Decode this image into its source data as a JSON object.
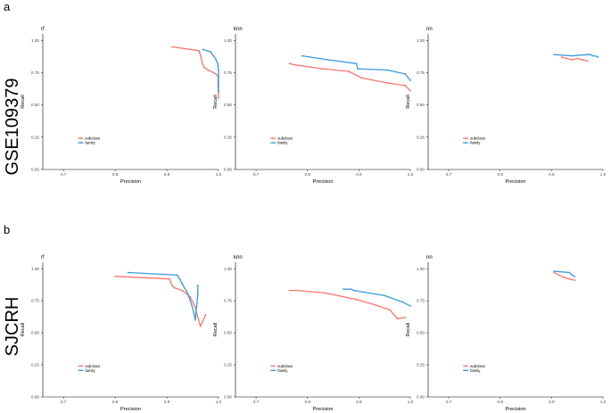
{
  "figure": {
    "rows": [
      {
        "letter": "a",
        "label": "GSE109379"
      },
      {
        "letter": "b",
        "label": "SJCRH"
      }
    ]
  },
  "chart_data": [
    {
      "type": "line",
      "title": "rf",
      "xlabel": "Precision",
      "ylabel": "Recall",
      "xlim": [
        0.66,
        1.0
      ],
      "ylim": [
        0,
        1.05
      ],
      "xticks": [
        "0.7",
        "0.8",
        "0.9",
        "1.0"
      ],
      "yticks": [
        "0.00",
        "0.25",
        "0.50",
        "0.75",
        "1.00"
      ],
      "legend": [
        "subclass",
        "family"
      ],
      "legend_position": "bottom-left",
      "colors": {
        "subclass": "#F8766D",
        "family": "#3A9BDC"
      },
      "series": [
        {
          "name": "subclass",
          "x": [
            0.91,
            0.962,
            0.964,
            0.966,
            0.968,
            0.972,
            0.98,
            0.99,
            0.995,
            0.999,
            0.999,
            1.0
          ],
          "y": [
            0.95,
            0.92,
            0.9,
            0.87,
            0.83,
            0.79,
            0.77,
            0.75,
            0.74,
            0.72,
            0.66,
            0.55
          ]
        },
        {
          "name": "family",
          "x": [
            0.97,
            0.985,
            0.99,
            0.994,
            0.996,
            0.998,
            0.999,
            1.0,
            1.0,
            1.0,
            1.0
          ],
          "y": [
            0.93,
            0.91,
            0.88,
            0.86,
            0.84,
            0.82,
            0.8,
            0.77,
            0.73,
            0.68,
            0.6
          ]
        }
      ]
    },
    {
      "type": "line",
      "title": "knn",
      "xlabel": "Precision",
      "ylabel": "Recall",
      "xlim": [
        0.66,
        1.0
      ],
      "ylim": [
        0,
        1.05
      ],
      "xticks": [
        "0.7",
        "0.8",
        "0.9",
        "1.0"
      ],
      "yticks": [
        "0.00",
        "0.25",
        "0.50",
        "0.75",
        "1.00"
      ],
      "legend": [
        "subclass",
        "family"
      ],
      "legend_position": "bottom-left",
      "colors": {
        "subclass": "#F8766D",
        "family": "#3A9BDC"
      },
      "series": [
        {
          "name": "subclass",
          "x": [
            0.765,
            0.775,
            0.83,
            0.88,
            0.905,
            0.955,
            0.99,
            1.0
          ],
          "y": [
            0.82,
            0.81,
            0.78,
            0.76,
            0.71,
            0.67,
            0.65,
            0.61
          ]
        },
        {
          "name": "family",
          "x": [
            0.79,
            0.84,
            0.895,
            0.898,
            0.955,
            0.99,
            1.0
          ],
          "y": [
            0.88,
            0.85,
            0.82,
            0.78,
            0.77,
            0.74,
            0.69
          ]
        }
      ]
    },
    {
      "type": "line",
      "title": "nn",
      "xlabel": "Precision",
      "ylabel": "Recall",
      "xlim": [
        0.66,
        1.0
      ],
      "ylim": [
        0,
        1.05
      ],
      "xticks": [
        "0.7",
        "0.8",
        "0.9",
        "1.0"
      ],
      "yticks": [
        "0.00",
        "0.25",
        "0.50",
        "0.75",
        "1.00"
      ],
      "legend": [
        "subclass",
        "family"
      ],
      "legend_position": "bottom-left",
      "colors": {
        "subclass": "#F8766D",
        "family": "#3A9BDC"
      },
      "series": [
        {
          "name": "subclass",
          "x": [
            0.92,
            0.93,
            0.94,
            0.95,
            0.96,
            0.97
          ],
          "y": [
            0.87,
            0.86,
            0.85,
            0.86,
            0.85,
            0.84
          ]
        },
        {
          "name": "family",
          "x": [
            0.905,
            0.94,
            0.97,
            0.975,
            0.98,
            0.985,
            0.99
          ],
          "y": [
            0.89,
            0.88,
            0.89,
            0.89,
            0.88,
            0.88,
            0.87
          ]
        }
      ]
    },
    {
      "type": "line",
      "title": "rf",
      "xlabel": "Precision",
      "ylabel": "Recall",
      "xlim": [
        0.66,
        1.0
      ],
      "ylim": [
        0,
        1.05
      ],
      "xticks": [
        "0.7",
        "0.8",
        "0.9",
        "1.0"
      ],
      "yticks": [
        "0.00",
        "0.25",
        "0.50",
        "0.75",
        "1.00"
      ],
      "legend": [
        "subclass",
        "family"
      ],
      "legend_position": "bottom-left",
      "colors": {
        "subclass": "#F8766D",
        "family": "#3A9BDC"
      },
      "series": [
        {
          "name": "subclass",
          "x": [
            0.8,
            0.905,
            0.91,
            0.915,
            0.93,
            0.945,
            0.955,
            0.96,
            0.965,
            0.975
          ],
          "y": [
            0.94,
            0.92,
            0.87,
            0.85,
            0.83,
            0.78,
            0.7,
            0.62,
            0.55,
            0.64
          ]
        },
        {
          "name": "family",
          "x": [
            0.825,
            0.92,
            0.925,
            0.93,
            0.94,
            0.948,
            0.952,
            0.955,
            0.96,
            0.96
          ],
          "y": [
            0.97,
            0.95,
            0.92,
            0.88,
            0.81,
            0.72,
            0.66,
            0.6,
            0.8,
            0.87
          ]
        }
      ]
    },
    {
      "type": "line",
      "title": "knn",
      "xlabel": "Precision",
      "ylabel": "Recall",
      "xlim": [
        0.66,
        1.0
      ],
      "ylim": [
        0,
        1.05
      ],
      "xticks": [
        "0.7",
        "0.8",
        "0.9",
        "1.0"
      ],
      "yticks": [
        "0.00",
        "0.25",
        "0.50",
        "0.75",
        "1.00"
      ],
      "legend": [
        "subclass",
        "family"
      ],
      "legend_position": "bottom-left",
      "colors": {
        "subclass": "#F8766D",
        "family": "#3A9BDC"
      },
      "series": [
        {
          "name": "subclass",
          "x": [
            0.765,
            0.78,
            0.835,
            0.895,
            0.93,
            0.96,
            0.975,
            0.99
          ],
          "y": [
            0.83,
            0.83,
            0.81,
            0.76,
            0.72,
            0.68,
            0.61,
            0.62
          ]
        },
        {
          "name": "family",
          "x": [
            0.87,
            0.885,
            0.89,
            0.95,
            0.985,
            1.0
          ],
          "y": [
            0.84,
            0.84,
            0.83,
            0.79,
            0.74,
            0.71
          ]
        }
      ]
    },
    {
      "type": "line",
      "title": "nn",
      "xlabel": "Precision",
      "ylabel": "Recall",
      "xlim": [
        0.66,
        1.0
      ],
      "ylim": [
        0,
        1.05
      ],
      "xticks": [
        "0.7",
        "0.8",
        "0.9",
        "1.0"
      ],
      "yticks": [
        "0.00",
        "0.25",
        "0.50",
        "0.75",
        "1.00"
      ],
      "legend": [
        "subclass",
        "family"
      ],
      "legend_position": "bottom-left",
      "colors": {
        "subclass": "#F8766D",
        "family": "#3A9BDC"
      },
      "series": [
        {
          "name": "subclass",
          "x": [
            0.905,
            0.915,
            0.925,
            0.935,
            0.945
          ],
          "y": [
            0.97,
            0.95,
            0.93,
            0.92,
            0.91
          ]
        },
        {
          "name": "family",
          "x": [
            0.905,
            0.935,
            0.94,
            0.945
          ],
          "y": [
            0.98,
            0.97,
            0.95,
            0.94
          ]
        }
      ]
    }
  ]
}
